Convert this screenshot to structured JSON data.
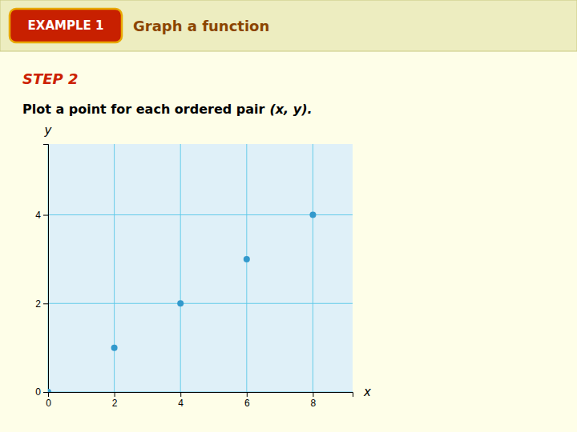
{
  "chart_data": {
    "type": "scatter",
    "title": "Graph a function",
    "annotations": [
      "EXAMPLE 1",
      "STEP 2",
      "Plot a point for each ordered pair",
      "(x, y)."
    ],
    "x_label": "x",
    "y_label": "y",
    "x": [
      0,
      2,
      4,
      6,
      8
    ],
    "values": [
      0,
      1,
      2,
      3,
      4
    ],
    "color": "#3399cc",
    "xlim": [
      0,
      9.2
    ],
    "ylim": [
      0,
      5.6
    ],
    "xticks": [
      0,
      2,
      4,
      6,
      8
    ],
    "yticks": [
      0,
      2,
      4
    ],
    "grid": true
  }
}
